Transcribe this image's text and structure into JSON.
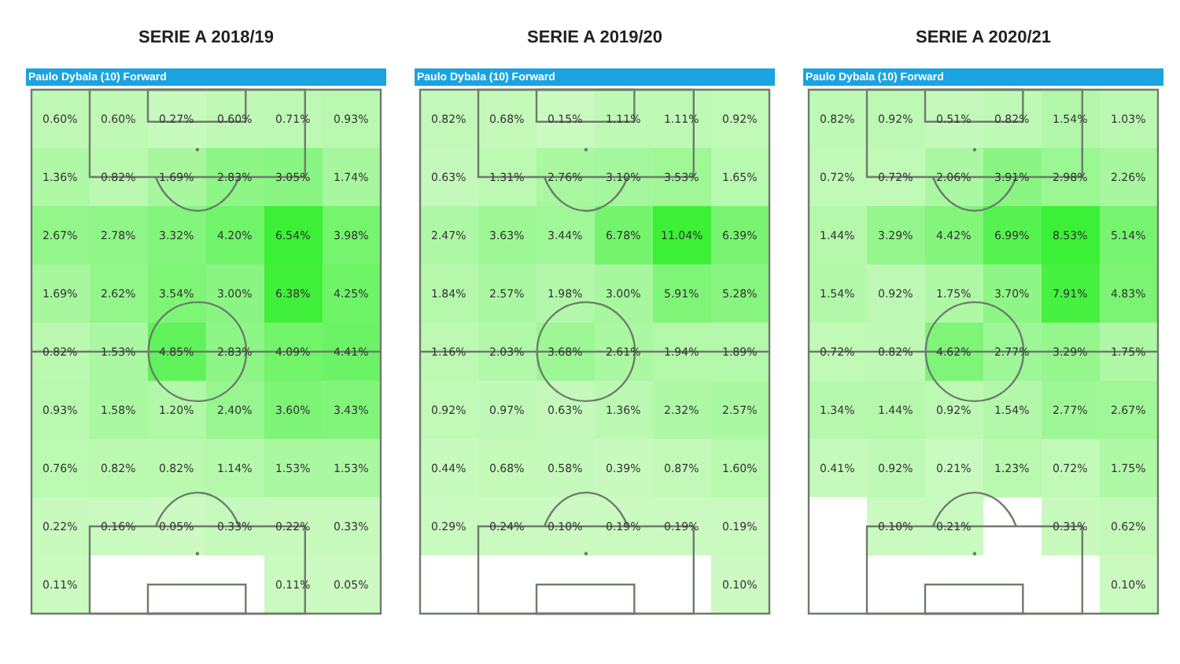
{
  "chart_data": [
    {
      "type": "heatmap",
      "title": "SERIE A 2018/19",
      "subtitle": "Paulo Dybala (10) Forward",
      "categories": [
        null,
        null,
        null,
        null,
        null,
        null
      ],
      "y_categories": [
        null,
        null,
        null,
        null,
        null,
        null,
        null,
        null,
        null
      ],
      "cells": [
        [
          0.6,
          0.6,
          0.27,
          0.6,
          0.71,
          0.93
        ],
        [
          1.36,
          0.82,
          1.69,
          2.83,
          3.05,
          1.74
        ],
        [
          2.67,
          2.78,
          3.32,
          4.2,
          6.54,
          3.98
        ],
        [
          1.69,
          2.62,
          3.54,
          3.0,
          6.38,
          4.25
        ],
        [
          0.82,
          1.53,
          4.85,
          2.83,
          4.09,
          4.41
        ],
        [
          0.93,
          1.58,
          1.2,
          2.4,
          3.6,
          3.43
        ],
        [
          0.76,
          0.82,
          0.82,
          1.14,
          1.53,
          1.53
        ],
        [
          0.22,
          0.16,
          0.05,
          0.33,
          0.22,
          0.33
        ],
        [
          0.11,
          null,
          null,
          null,
          0.11,
          0.05
        ]
      ],
      "cell_labels": [
        [
          "0.60%",
          "0.60%",
          "0.27%",
          "0.60%",
          "0.71%",
          "0.93%"
        ],
        [
          "1.36%",
          "0.82%",
          "1.69%",
          "2.83%",
          "3.05%",
          "1.74%"
        ],
        [
          "2.67%",
          "2.78%",
          "3.32%",
          "4.20%",
          "6.54%",
          "3.98%"
        ],
        [
          "1.69%",
          "2.62%",
          "3.54%",
          "3.00%",
          "6.38%",
          "4.25%"
        ],
        [
          "0.82%",
          "1.53%",
          "4.85%",
          "2.83%",
          "4.09%",
          "4.41%"
        ],
        [
          "0.93%",
          "1.58%",
          "1.20%",
          "2.40%",
          "3.60%",
          "3.43%"
        ],
        [
          "0.76%",
          "0.82%",
          "0.82%",
          "1.14%",
          "1.53%",
          "1.53%"
        ],
        [
          "0.22%",
          "0.16%",
          "0.05%",
          "0.33%",
          "0.22%",
          "0.33%"
        ],
        [
          "0.11%",
          null,
          null,
          null,
          "0.11%",
          "0.05%"
        ]
      ]
    },
    {
      "type": "heatmap",
      "title": "SERIE A 2019/20",
      "subtitle": "Paulo Dybala (10) Forward",
      "categories": [
        null,
        null,
        null,
        null,
        null,
        null
      ],
      "y_categories": [
        null,
        null,
        null,
        null,
        null,
        null,
        null,
        null,
        null
      ],
      "cells": [
        [
          0.82,
          0.68,
          0.15,
          1.11,
          1.11,
          0.92
        ],
        [
          0.63,
          1.31,
          2.76,
          3.1,
          3.53,
          1.65
        ],
        [
          2.47,
          3.63,
          3.44,
          6.78,
          11.04,
          6.39
        ],
        [
          1.84,
          2.57,
          1.98,
          3.0,
          5.91,
          5.28
        ],
        [
          1.16,
          2.03,
          3.68,
          2.61,
          1.94,
          1.89
        ],
        [
          0.92,
          0.97,
          0.63,
          1.36,
          2.32,
          2.57
        ],
        [
          0.44,
          0.68,
          0.58,
          0.39,
          0.87,
          1.6
        ],
        [
          0.29,
          0.24,
          0.1,
          0.19,
          0.19,
          0.19
        ],
        [
          null,
          null,
          null,
          null,
          null,
          0.1
        ]
      ],
      "cell_labels": [
        [
          "0.82%",
          "0.68%",
          "0.15%",
          "1.11%",
          "1.11%",
          "0.92%"
        ],
        [
          "0.63%",
          "1.31%",
          "2.76%",
          "3.10%",
          "3.53%",
          "1.65%"
        ],
        [
          "2.47%",
          "3.63%",
          "3.44%",
          "6.78%",
          "11.04%",
          "6.39%"
        ],
        [
          "1.84%",
          "2.57%",
          "1.98%",
          "3.00%",
          "5.91%",
          "5.28%"
        ],
        [
          "1.16%",
          "2.03%",
          "3.68%",
          "2.61%",
          "1.94%",
          "1.89%"
        ],
        [
          "0.92%",
          "0.97%",
          "0.63%",
          "1.36%",
          "2.32%",
          "2.57%"
        ],
        [
          "0.44%",
          "0.68%",
          "0.58%",
          "0.39%",
          "0.87%",
          "1.60%"
        ],
        [
          "0.29%",
          "0.24%",
          "0.10%",
          "0.19%",
          "0.19%",
          "0.19%"
        ],
        [
          null,
          null,
          null,
          null,
          null,
          "0.10%"
        ]
      ]
    },
    {
      "type": "heatmap",
      "title": "SERIE A 2020/21",
      "subtitle": "Paulo Dybala (10) Forward",
      "categories": [
        null,
        null,
        null,
        null,
        null,
        null
      ],
      "y_categories": [
        null,
        null,
        null,
        null,
        null,
        null,
        null,
        null,
        null
      ],
      "cells": [
        [
          0.82,
          0.92,
          0.51,
          0.82,
          1.54,
          1.03
        ],
        [
          0.72,
          0.72,
          2.06,
          3.91,
          2.98,
          2.26
        ],
        [
          1.44,
          3.29,
          4.42,
          6.99,
          8.53,
          5.14
        ],
        [
          1.54,
          0.92,
          1.75,
          3.7,
          7.91,
          4.83
        ],
        [
          0.72,
          0.82,
          4.62,
          2.77,
          3.29,
          1.75
        ],
        [
          1.34,
          1.44,
          0.92,
          1.54,
          2.77,
          2.67
        ],
        [
          0.41,
          0.92,
          0.21,
          1.23,
          0.72,
          1.75
        ],
        [
          null,
          0.1,
          0.21,
          null,
          0.31,
          0.62
        ],
        [
          null,
          null,
          null,
          null,
          null,
          0.1
        ]
      ],
      "cell_labels": [
        [
          "0.82%",
          "0.92%",
          "0.51%",
          "0.82%",
          "1.54%",
          "1.03%"
        ],
        [
          "0.72%",
          "0.72%",
          "2.06%",
          "3.91%",
          "2.98%",
          "2.26%"
        ],
        [
          "1.44%",
          "3.29%",
          "4.42%",
          "6.99%",
          "8.53%",
          "5.14%"
        ],
        [
          "1.54%",
          "0.92%",
          "1.75%",
          "3.70%",
          "7.91%",
          "4.83%"
        ],
        [
          "0.72%",
          "0.82%",
          "4.62%",
          "2.77%",
          "3.29%",
          "1.75%"
        ],
        [
          "1.34%",
          "1.44%",
          "0.92%",
          "1.54%",
          "2.77%",
          "2.67%"
        ],
        [
          "0.41%",
          "0.92%",
          "0.21%",
          "1.23%",
          "0.72%",
          "1.75%"
        ],
        [
          null,
          "0.10%",
          "0.21%",
          null,
          "0.31%",
          "0.62%"
        ],
        [
          null,
          null,
          null,
          null,
          null,
          "0.10%"
        ]
      ]
    }
  ]
}
